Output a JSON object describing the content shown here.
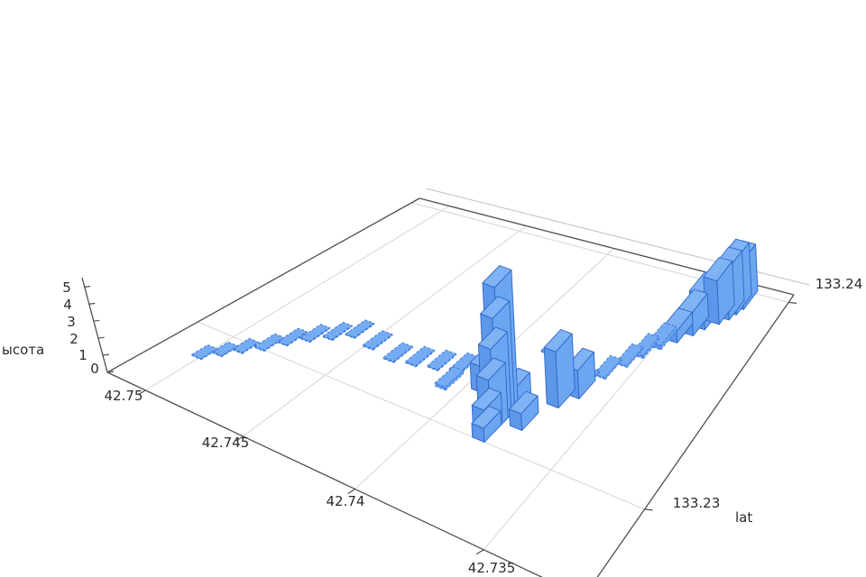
{
  "figure": {
    "zlabel": "ысота",
    "xlabel": "lat",
    "background": "#ffffff"
  },
  "chart_data": {
    "type": "bar",
    "subtype": "bar3d-histogram",
    "title": "",
    "xlabel": "lat",
    "zlabel": "ысота",
    "legend": "none",
    "grid": "on",
    "lat_axis": {
      "tick_labels": [
        "42.75",
        "42.745",
        "42.74",
        "42.735"
      ],
      "ticks": [
        42.75,
        42.745,
        42.74,
        42.735
      ],
      "range": [
        42.752,
        42.732
      ]
    },
    "lon_axis": {
      "tick_labels": [
        "133.23",
        "133.24"
      ],
      "ticks": [
        133.23,
        133.24
      ],
      "range": [
        133.2245,
        133.2405
      ]
    },
    "z_axis": {
      "tick_labels": [
        "0",
        "1",
        "2",
        "3",
        "4",
        "5"
      ],
      "ticks": [
        0,
        1,
        2,
        3,
        4,
        5
      ],
      "range": [
        0,
        5.5
      ]
    },
    "bar_footprint": {
      "dlat": 0.0005,
      "dlon": 0.001
    },
    "bars": [
      {
        "lat": 42.7501,
        "lon": 133.2283,
        "h": 0.05
      },
      {
        "lat": 42.7496,
        "lon": 133.229,
        "h": 0.05
      },
      {
        "lat": 42.7491,
        "lon": 133.2297,
        "h": 0.05
      },
      {
        "lat": 42.7485,
        "lon": 133.2304,
        "h": 0.05
      },
      {
        "lat": 42.748,
        "lon": 133.2311,
        "h": 0.05
      },
      {
        "lat": 42.7474,
        "lon": 133.2317,
        "h": 0.05
      },
      {
        "lat": 42.7467,
        "lon": 133.2322,
        "h": 0.05
      },
      {
        "lat": 42.746,
        "lon": 133.2327,
        "h": 0.05
      },
      {
        "lat": 42.7448,
        "lon": 133.2325,
        "h": 0.05
      },
      {
        "lat": 42.7436,
        "lon": 133.2323,
        "h": 0.05
      },
      {
        "lat": 42.7427,
        "lon": 133.2325,
        "h": 0.05
      },
      {
        "lat": 42.7418,
        "lon": 133.2327,
        "h": 0.05
      },
      {
        "lat": 42.7409,
        "lon": 133.2329,
        "h": 0.08
      },
      {
        "lat": 42.7408,
        "lon": 133.232,
        "h": 0.12
      },
      {
        "lat": 42.7395,
        "lon": 133.2325,
        "h": 1
      },
      {
        "lat": 42.7385,
        "lon": 133.2352,
        "h": 0.05
      },
      {
        "lat": 42.738,
        "lon": 133.2315,
        "h": 5
      },
      {
        "lat": 42.738,
        "lon": 133.2313,
        "h": 4
      },
      {
        "lat": 42.738,
        "lon": 133.2311,
        "h": 3
      },
      {
        "lat": 42.738,
        "lon": 133.2309,
        "h": 2
      },
      {
        "lat": 42.7381,
        "lon": 133.2307,
        "h": 1
      },
      {
        "lat": 42.7378,
        "lon": 133.232,
        "h": 1
      },
      {
        "lat": 42.7372,
        "lon": 133.2316,
        "h": 0.6
      },
      {
        "lat": 42.738,
        "lon": 133.2305,
        "h": 0.5
      },
      {
        "lat": 42.7367,
        "lon": 133.2331,
        "h": 2
      },
      {
        "lat": 42.7363,
        "lon": 133.2338,
        "h": 1
      },
      {
        "lat": 42.7364,
        "lon": 133.2342,
        "h": 0.05
      },
      {
        "lat": 42.736,
        "lon": 133.235,
        "h": 0.05
      },
      {
        "lat": 42.7356,
        "lon": 133.2358,
        "h": 0.05
      },
      {
        "lat": 42.7353,
        "lon": 133.2364,
        "h": 0.1
      },
      {
        "lat": 42.735,
        "lon": 133.237,
        "h": 0.15
      },
      {
        "lat": 42.7347,
        "lon": 133.2375,
        "h": 0.4
      },
      {
        "lat": 42.7344,
        "lon": 133.238,
        "h": 0.8
      },
      {
        "lat": 42.7342,
        "lon": 133.2384,
        "h": 1.2
      },
      {
        "lat": 42.7339,
        "lon": 133.2388,
        "h": 1.5
      },
      {
        "lat": 42.7337,
        "lon": 133.2391,
        "h": 1.7
      },
      {
        "lat": 42.7336,
        "lon": 133.2394,
        "h": 1.8
      },
      {
        "lat": 42.7335,
        "lon": 133.2397,
        "h": 1.6
      }
    ],
    "colors": {
      "bar_top": "#7fb3f4",
      "bar_left": "#5d97e9",
      "bar_right": "#6ca6f0",
      "bar_edge": "#2d66c8",
      "tile_fill": "#74abf2",
      "tile_edge": "#3a76d8",
      "gridline": "#d8d8d8",
      "pane_edge": "#4f4f4f",
      "axis_offset_line": "#c9c9c9",
      "text": "#2b2b2b"
    }
  }
}
